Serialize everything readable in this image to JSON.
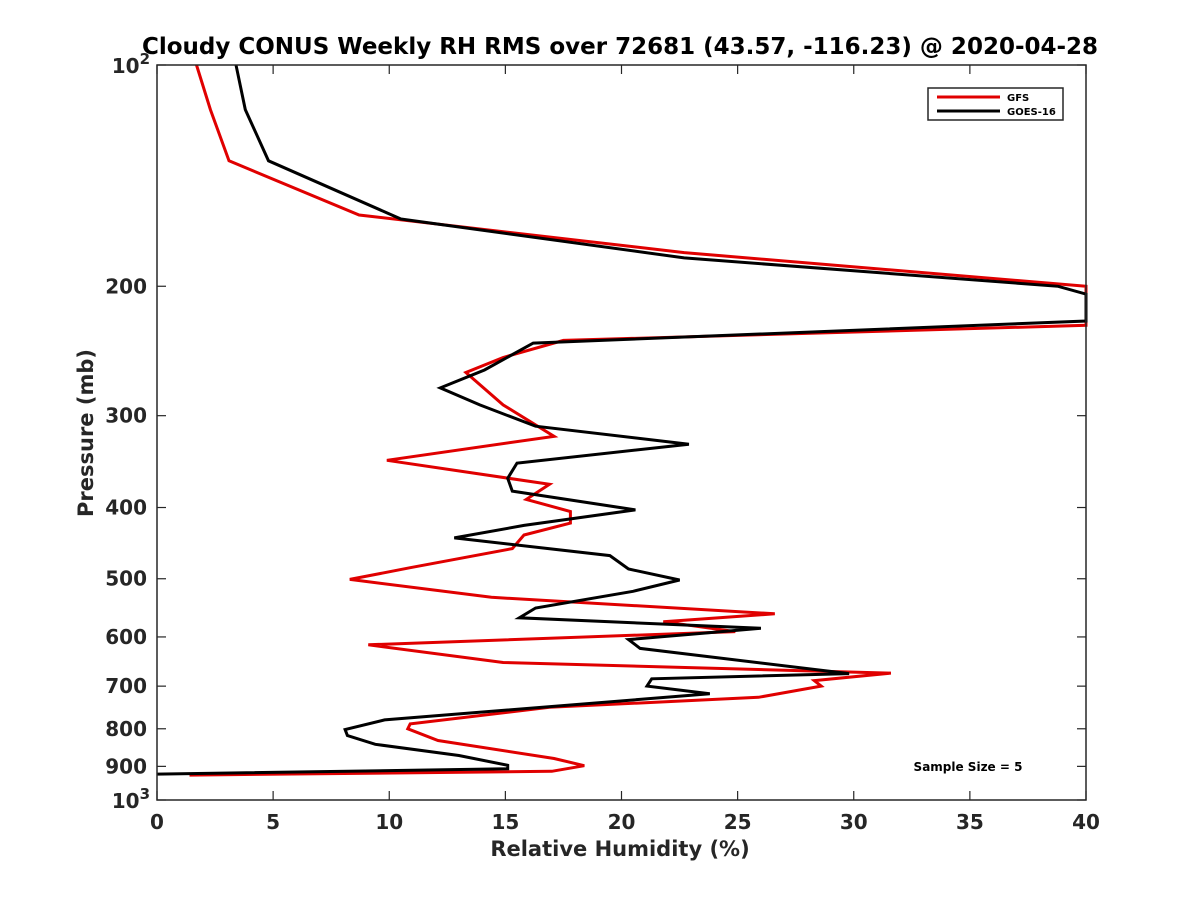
{
  "chart_data": {
    "type": "line",
    "title": "Cloudy CONUS Weekly RH RMS over 72681 (43.57, -116.23) @ 2020-04-28",
    "xlabel": "Relative Humidity (%)",
    "ylabel": "Pressure (mb)",
    "xlim": [
      0,
      40
    ],
    "ylim": [
      100,
      1000
    ],
    "yscale": "log",
    "y_reversed": true,
    "x_ticks": [
      0,
      5,
      10,
      15,
      20,
      25,
      30,
      35,
      40
    ],
    "x_tick_labels": [
      "0",
      "5",
      "10",
      "15",
      "20",
      "25",
      "30",
      "35",
      "40"
    ],
    "y_ticks": [
      100,
      200,
      300,
      400,
      500,
      600,
      700,
      800,
      900,
      1000
    ],
    "y_tick_labels": [
      {
        "base": "10",
        "exp": "2"
      },
      {
        "base": "200",
        "exp": ""
      },
      {
        "base": "300",
        "exp": ""
      },
      {
        "base": "400",
        "exp": ""
      },
      {
        "base": "500",
        "exp": ""
      },
      {
        "base": "600",
        "exp": ""
      },
      {
        "base": "700",
        "exp": ""
      },
      {
        "base": "800",
        "exp": ""
      },
      {
        "base": "900",
        "exp": ""
      },
      {
        "base": "10",
        "exp": "3"
      }
    ],
    "grid": false,
    "legend_position": "top-right",
    "annotation": "Sample Size = 5",
    "series": [
      {
        "name": "GFS",
        "color": "#e00000",
        "points": [
          [
            1.7,
            100
          ],
          [
            2.3,
            115
          ],
          [
            3.1,
            135
          ],
          [
            8.7,
            160
          ],
          [
            22.7,
            180
          ],
          [
            40.0,
            200
          ],
          [
            40.0,
            226
          ],
          [
            17.5,
            237
          ],
          [
            14.9,
            250
          ],
          [
            13.3,
            262
          ],
          [
            14.9,
            290
          ],
          [
            17.1,
            320
          ],
          [
            9.9,
            345
          ],
          [
            16.9,
            372
          ],
          [
            15.9,
            390
          ],
          [
            17.8,
            405
          ],
          [
            17.8,
            420
          ],
          [
            15.8,
            436
          ],
          [
            15.3,
            455
          ],
          [
            10.9,
            483
          ],
          [
            8.3,
            501
          ],
          [
            14.4,
            530
          ],
          [
            26.6,
            558
          ],
          [
            21.8,
            572
          ],
          [
            24.9,
            590
          ],
          [
            9.1,
            615
          ],
          [
            14.9,
            650
          ],
          [
            31.6,
            672
          ],
          [
            28.3,
            688
          ],
          [
            28.6,
            700
          ],
          [
            25.9,
            725
          ],
          [
            16.9,
            748
          ],
          [
            10.9,
            788
          ],
          [
            10.8,
            800
          ],
          [
            12.1,
            830
          ],
          [
            17.1,
            878
          ],
          [
            18.4,
            898
          ],
          [
            17.0,
            914
          ],
          [
            1.4,
            925
          ]
        ]
      },
      {
        "name": "GOES-16",
        "color": "#000000",
        "points": [
          [
            3.4,
            100
          ],
          [
            3.8,
            115
          ],
          [
            4.8,
            135
          ],
          [
            10.5,
            162
          ],
          [
            22.7,
            183
          ],
          [
            38.8,
            200
          ],
          [
            40.0,
            205
          ],
          [
            40.0,
            223
          ],
          [
            16.2,
            239
          ],
          [
            14.1,
            260
          ],
          [
            12.2,
            275
          ],
          [
            13.9,
            290
          ],
          [
            16.3,
            310
          ],
          [
            22.9,
            328
          ],
          [
            15.5,
            348
          ],
          [
            15.1,
            365
          ],
          [
            15.3,
            380
          ],
          [
            20.6,
            403
          ],
          [
            15.8,
            423
          ],
          [
            12.8,
            440
          ],
          [
            19.5,
            465
          ],
          [
            20.3,
            485
          ],
          [
            22.5,
            502
          ],
          [
            20.5,
            520
          ],
          [
            16.3,
            548
          ],
          [
            15.6,
            565
          ],
          [
            26.0,
            584
          ],
          [
            20.3,
            605
          ],
          [
            20.8,
            622
          ],
          [
            29.8,
            673
          ],
          [
            21.3,
            684
          ],
          [
            21.1,
            700
          ],
          [
            23.8,
            717
          ],
          [
            9.8,
            778
          ],
          [
            8.1,
            802
          ],
          [
            8.2,
            817
          ],
          [
            9.4,
            840
          ],
          [
            13.0,
            870
          ],
          [
            15.1,
            897
          ],
          [
            15.1,
            907
          ],
          [
            0.0,
            922
          ]
        ]
      }
    ]
  }
}
